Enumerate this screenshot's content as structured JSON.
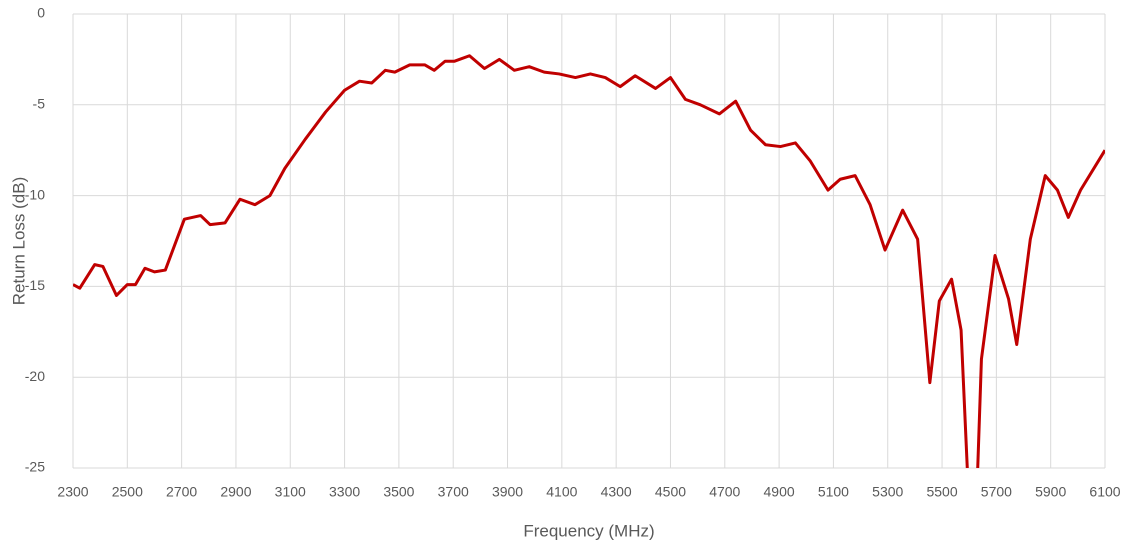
{
  "chart_data": {
    "type": "line",
    "xlabel": "Frequency (MHz)",
    "ylabel": "Return Loss (dB)",
    "x": [
      2300,
      2325,
      2380,
      2410,
      2460,
      2500,
      2530,
      2565,
      2600,
      2640,
      2710,
      2770,
      2805,
      2860,
      2915,
      2970,
      3025,
      3080,
      3155,
      3230,
      3300,
      3355,
      3400,
      3450,
      3485,
      3540,
      3595,
      3630,
      3670,
      3705,
      3760,
      3815,
      3870,
      3925,
      3980,
      4035,
      4090,
      4150,
      4205,
      4260,
      4315,
      4370,
      4445,
      4500,
      4555,
      4610,
      4680,
      4740,
      4795,
      4850,
      4905,
      4960,
      5015,
      5080,
      5125,
      5180,
      5235,
      5290,
      5355,
      5410,
      5455,
      5490,
      5535,
      5570,
      5595,
      5620,
      5645,
      5695,
      5745,
      5775,
      5825,
      5880,
      5925,
      5965,
      6010,
      6100
    ],
    "series": [
      {
        "name": "Return Loss",
        "color": "#c00000",
        "values": [
          -14.9,
          -15.1,
          -13.8,
          -13.9,
          -15.5,
          -14.9,
          -14.9,
          -14.0,
          -14.2,
          -14.1,
          -11.3,
          -11.1,
          -11.6,
          -11.5,
          -10.2,
          -10.5,
          -10.0,
          -8.5,
          -6.9,
          -5.4,
          -4.2,
          -3.7,
          -3.8,
          -3.1,
          -3.2,
          -2.8,
          -2.8,
          -3.1,
          -2.6,
          -2.6,
          -2.3,
          -3.0,
          -2.5,
          -3.1,
          -2.9,
          -3.2,
          -3.3,
          -3.5,
          -3.3,
          -3.5,
          -4.0,
          -3.4,
          -4.1,
          -3.5,
          -4.7,
          -5.0,
          -5.5,
          -4.8,
          -6.4,
          -7.2,
          -7.3,
          -7.1,
          -8.1,
          -9.7,
          -9.1,
          -8.9,
          -10.5,
          -13.0,
          -10.8,
          -12.4,
          -20.3,
          -15.8,
          -14.6,
          -17.4,
          -25.7,
          -30,
          -19,
          -13.3,
          -15.7,
          -18.2,
          -12.4,
          -8.9,
          -9.7,
          -11.2,
          -9.7,
          -7.5
        ]
      }
    ],
    "xlim": [
      2300,
      6100
    ],
    "xticks": [
      2300,
      2500,
      2700,
      2900,
      3100,
      3300,
      3500,
      3700,
      3900,
      4100,
      4300,
      4500,
      4700,
      4900,
      5100,
      5300,
      5500,
      5700,
      5900,
      6100
    ],
    "ylim": [
      -25,
      0
    ],
    "yticks": [
      0,
      -5,
      -10,
      -15,
      -20,
      -25
    ],
    "grid": true
  }
}
